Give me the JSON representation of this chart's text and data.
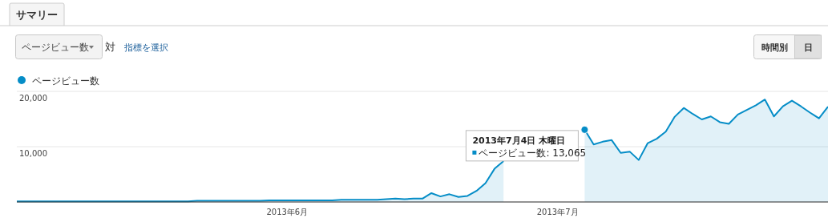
{
  "chart_data": {
    "type": "area",
    "legend": "top left",
    "grid": "y",
    "marker": "none",
    "x": [
      "2013-05-02",
      "2013-05-03",
      "2013-05-04",
      "2013-05-05",
      "2013-05-06",
      "2013-05-07",
      "2013-05-08",
      "2013-05-09",
      "2013-05-10",
      "2013-05-11",
      "2013-05-12",
      "2013-05-13",
      "2013-05-14",
      "2013-05-15",
      "2013-05-16",
      "2013-05-17",
      "2013-05-18",
      "2013-05-19",
      "2013-05-20",
      "2013-05-21",
      "2013-05-22",
      "2013-05-23",
      "2013-05-24",
      "2013-05-25",
      "2013-05-26",
      "2013-05-27",
      "2013-05-28",
      "2013-05-29",
      "2013-05-30",
      "2013-05-31",
      "2013-06-01",
      "2013-06-02",
      "2013-06-03",
      "2013-06-04",
      "2013-06-05",
      "2013-06-06",
      "2013-06-07",
      "2013-06-08",
      "2013-06-09",
      "2013-06-10",
      "2013-06-11",
      "2013-06-12",
      "2013-06-13",
      "2013-06-14",
      "2013-06-15",
      "2013-06-16",
      "2013-06-17",
      "2013-06-18",
      "2013-06-19",
      "2013-06-20",
      "2013-06-21",
      "2013-06-22",
      "2013-06-23",
      "2013-06-24",
      "2013-06-25",
      "2013-06-26",
      "2013-06-27",
      "2013-06-28",
      "2013-06-29",
      "2013-06-30",
      "2013-07-01",
      "2013-07-02",
      "2013-07-03",
      "2013-07-04",
      "2013-07-05",
      "2013-07-06",
      "2013-07-07",
      "2013-07-08",
      "2013-07-09",
      "2013-07-10",
      "2013-07-11",
      "2013-07-12",
      "2013-07-13",
      "2013-07-14",
      "2013-07-15",
      "2013-07-16",
      "2013-07-17",
      "2013-07-18",
      "2013-07-19",
      "2013-07-20",
      "2013-07-21",
      "2013-07-22",
      "2013-07-23",
      "2013-07-24",
      "2013-07-25",
      "2013-07-26",
      "2013-07-27",
      "2013-07-28",
      "2013-07-29",
      "2013-07-30",
      "2013-07-31"
    ],
    "series": [
      {
        "name": "ページビュー数",
        "color": "#058dc7",
        "values": [
          100,
          100,
          100,
          100,
          100,
          100,
          100,
          100,
          100,
          100,
          100,
          100,
          100,
          100,
          100,
          100,
          100,
          100,
          100,
          100,
          200,
          200,
          200,
          200,
          200,
          200,
          200,
          200,
          300,
          300,
          300,
          300,
          300,
          300,
          300,
          300,
          400,
          400,
          400,
          400,
          400,
          500,
          600,
          500,
          600,
          600,
          1600,
          1000,
          1400,
          900,
          1100,
          2000,
          3400,
          6000,
          7400,
          null,
          null,
          null,
          null,
          null,
          null,
          null,
          null,
          13065,
          10390,
          10890,
          11180,
          8870,
          9110,
          7590,
          10640,
          11430,
          12710,
          15420,
          17000,
          15910,
          14930,
          15470,
          14430,
          14140,
          15810,
          16650,
          17490,
          18520,
          15470,
          17290,
          18320,
          17290,
          16160,
          15120,
          17240
        ]
      }
    ],
    "xlim": [
      "2013-05-02",
      "2013-07-31"
    ],
    "xticks": [
      {
        "value": "2013-06-01",
        "label": "2013年6月"
      },
      {
        "value": "2013-07-01",
        "label": "2013年7月"
      }
    ],
    "ylim": [
      0,
      20000
    ],
    "yticks": [
      {
        "value": 0,
        "label": null
      },
      {
        "value": 10000,
        "label": "10,000"
      },
      {
        "value": 20000,
        "label": "20,000"
      }
    ],
    "annotations": [
      "サマリー",
      "ページビュー数",
      "対",
      "指標を選択",
      "時間別",
      "日",
      {
        "text": "2013年7月4日 木曜日",
        "x": "2013-07-04",
        "y": 13065
      },
      "ページビュー数: 13,065"
    ]
  }
}
